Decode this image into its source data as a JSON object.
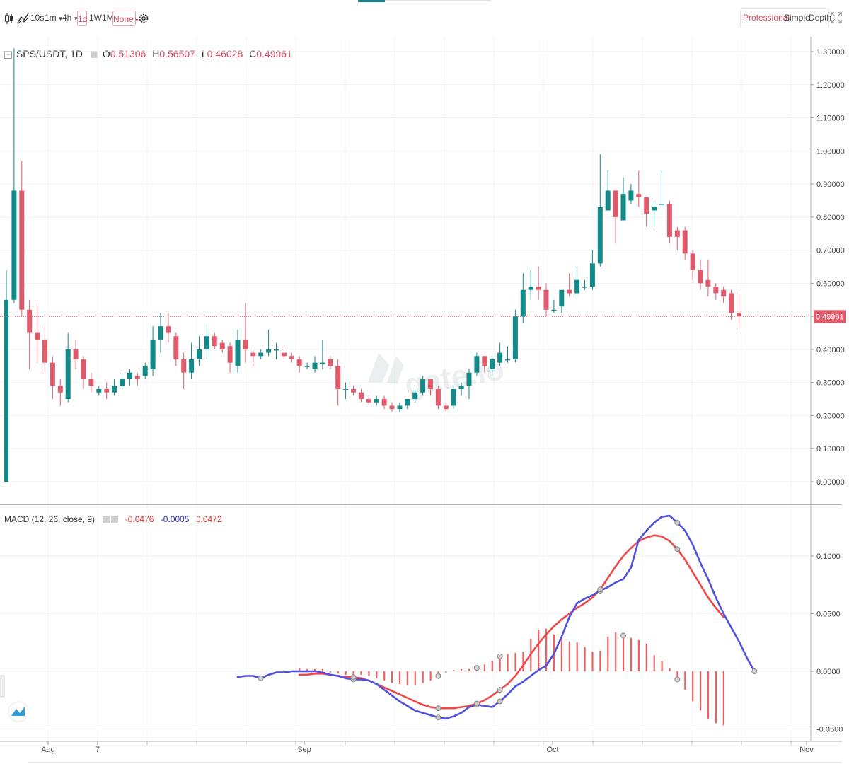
{
  "toolbar": {
    "intervals": [
      "10s",
      "1m",
      "4h",
      "1d",
      "1W",
      "1M"
    ],
    "active_interval": "1d",
    "chart_style": "None",
    "views": [
      "Professional",
      "Simple",
      "Depth"
    ],
    "active_view": "Professional"
  },
  "legend": {
    "symbol": "SPS/USDT, 1D",
    "o_label": "O",
    "open": "0.51306",
    "h_label": "H",
    "high": "0.56507",
    "l_label": "L",
    "low": "0.46028",
    "c_label": "C",
    "close": "0.49961"
  },
  "macd_legend": {
    "label": "MACD (12, 26, close, 9)",
    "hist": "-0.0476",
    "macd": "-0.0005",
    "signal": "0.0472"
  },
  "colors": {
    "up": "#138a8a",
    "down": "#e05c6d",
    "macd": "#5050e0",
    "signal": "#f04848",
    "hist": "#f06060"
  },
  "chart_data": [
    {
      "type": "candlestick",
      "title": "SPS/USDT, 1D",
      "ylim": [
        0,
        1.3
      ],
      "yticks": [
        "0.00000",
        "0.10000",
        "0.20000",
        "0.30000",
        "0.40000",
        "0.50000",
        "0.60000",
        "0.70000",
        "0.80000",
        "0.90000",
        "1.00000",
        "1.10000",
        "1.20000",
        "1.30000"
      ],
      "xticks": [
        "Aug",
        "7",
        "Sep",
        "Oct",
        "Nov"
      ],
      "last_price": "0.49961",
      "candles": [
        [
          0.0,
          0.55,
          0.64,
          0.0
        ],
        [
          0.55,
          0.88,
          1.31,
          0.54
        ],
        [
          0.88,
          0.52,
          0.97,
          0.5
        ],
        [
          0.52,
          0.45,
          0.55,
          0.34
        ],
        [
          0.45,
          0.43,
          0.54,
          0.36
        ],
        [
          0.43,
          0.36,
          0.47,
          0.33
        ],
        [
          0.36,
          0.29,
          0.38,
          0.25
        ],
        [
          0.29,
          0.27,
          0.31,
          0.23
        ],
        [
          0.25,
          0.4,
          0.45,
          0.24
        ],
        [
          0.4,
          0.37,
          0.43,
          0.34
        ],
        [
          0.37,
          0.31,
          0.38,
          0.28
        ],
        [
          0.31,
          0.29,
          0.33,
          0.27
        ],
        [
          0.27,
          0.28,
          0.29,
          0.26
        ],
        [
          0.28,
          0.27,
          0.3,
          0.25
        ],
        [
          0.27,
          0.29,
          0.31,
          0.26
        ],
        [
          0.29,
          0.31,
          0.33,
          0.28
        ],
        [
          0.31,
          0.33,
          0.34,
          0.29
        ],
        [
          0.32,
          0.31,
          0.33,
          0.29
        ],
        [
          0.32,
          0.35,
          0.36,
          0.31
        ],
        [
          0.34,
          0.43,
          0.47,
          0.32
        ],
        [
          0.43,
          0.47,
          0.51,
          0.39
        ],
        [
          0.47,
          0.45,
          0.51,
          0.42
        ],
        [
          0.44,
          0.37,
          0.45,
          0.35
        ],
        [
          0.37,
          0.33,
          0.39,
          0.28
        ],
        [
          0.33,
          0.37,
          0.42,
          0.31
        ],
        [
          0.37,
          0.4,
          0.44,
          0.35
        ],
        [
          0.4,
          0.44,
          0.48,
          0.37
        ],
        [
          0.44,
          0.41,
          0.45,
          0.4
        ],
        [
          0.42,
          0.4,
          0.43,
          0.39
        ],
        [
          0.41,
          0.36,
          0.42,
          0.33
        ],
        [
          0.35,
          0.43,
          0.46,
          0.33
        ],
        [
          0.43,
          0.4,
          0.54,
          0.36
        ],
        [
          0.39,
          0.38,
          0.4,
          0.35
        ],
        [
          0.38,
          0.39,
          0.4,
          0.37
        ],
        [
          0.39,
          0.4,
          0.46,
          0.38
        ],
        [
          0.4,
          0.4,
          0.42,
          0.37
        ],
        [
          0.39,
          0.38,
          0.4,
          0.37
        ],
        [
          0.38,
          0.37,
          0.39,
          0.36
        ],
        [
          0.37,
          0.35,
          0.38,
          0.33
        ],
        [
          0.35,
          0.35,
          0.36,
          0.34
        ],
        [
          0.34,
          0.36,
          0.38,
          0.33
        ],
        [
          0.36,
          0.36,
          0.43,
          0.34
        ],
        [
          0.37,
          0.35,
          0.38,
          0.34
        ],
        [
          0.35,
          0.28,
          0.37,
          0.23
        ],
        [
          0.28,
          0.28,
          0.3,
          0.25
        ],
        [
          0.28,
          0.27,
          0.29,
          0.26
        ],
        [
          0.27,
          0.25,
          0.28,
          0.24
        ],
        [
          0.25,
          0.24,
          0.26,
          0.23
        ],
        [
          0.24,
          0.25,
          0.26,
          0.23
        ],
        [
          0.25,
          0.23,
          0.26,
          0.22
        ],
        [
          0.23,
          0.22,
          0.24,
          0.21
        ],
        [
          0.22,
          0.23,
          0.24,
          0.21
        ],
        [
          0.23,
          0.25,
          0.25,
          0.22
        ],
        [
          0.25,
          0.27,
          0.28,
          0.24
        ],
        [
          0.27,
          0.31,
          0.32,
          0.26
        ],
        [
          0.31,
          0.28,
          0.31,
          0.26
        ],
        [
          0.28,
          0.23,
          0.29,
          0.22
        ],
        [
          0.23,
          0.22,
          0.24,
          0.21
        ],
        [
          0.23,
          0.28,
          0.29,
          0.22
        ],
        [
          0.28,
          0.29,
          0.3,
          0.26
        ],
        [
          0.29,
          0.33,
          0.34,
          0.25
        ],
        [
          0.33,
          0.38,
          0.39,
          0.32
        ],
        [
          0.38,
          0.35,
          0.38,
          0.33
        ],
        [
          0.34,
          0.37,
          0.38,
          0.32
        ],
        [
          0.36,
          0.39,
          0.42,
          0.35
        ],
        [
          0.37,
          0.37,
          0.41,
          0.36
        ],
        [
          0.37,
          0.5,
          0.52,
          0.36
        ],
        [
          0.5,
          0.58,
          0.63,
          0.48
        ],
        [
          0.58,
          0.59,
          0.64,
          0.55
        ],
        [
          0.59,
          0.58,
          0.65,
          0.55
        ],
        [
          0.58,
          0.52,
          0.6,
          0.5
        ],
        [
          0.52,
          0.52,
          0.55,
          0.51
        ],
        [
          0.53,
          0.58,
          0.58,
          0.51
        ],
        [
          0.58,
          0.57,
          0.63,
          0.56
        ],
        [
          0.57,
          0.61,
          0.65,
          0.56
        ],
        [
          0.59,
          0.59,
          0.61,
          0.58
        ],
        [
          0.59,
          0.66,
          0.7,
          0.58
        ],
        [
          0.66,
          0.83,
          0.99,
          0.65
        ],
        [
          0.82,
          0.88,
          0.94,
          0.83
        ],
        [
          0.88,
          0.8,
          0.88,
          0.72
        ],
        [
          0.79,
          0.87,
          0.92,
          0.8
        ],
        [
          0.85,
          0.88,
          0.9,
          0.84
        ],
        [
          0.87,
          0.86,
          0.94,
          0.83
        ],
        [
          0.86,
          0.81,
          0.86,
          0.77
        ],
        [
          0.82,
          0.83,
          0.85,
          0.77
        ],
        [
          0.84,
          0.84,
          0.94,
          0.83
        ],
        [
          0.84,
          0.74,
          0.85,
          0.72
        ],
        [
          0.76,
          0.74,
          0.77,
          0.7
        ],
        [
          0.76,
          0.69,
          0.77,
          0.67
        ],
        [
          0.69,
          0.64,
          0.7,
          0.61
        ],
        [
          0.64,
          0.6,
          0.67,
          0.58
        ],
        [
          0.61,
          0.59,
          0.67,
          0.56
        ],
        [
          0.59,
          0.57,
          0.6,
          0.55
        ],
        [
          0.58,
          0.56,
          0.59,
          0.54
        ],
        [
          0.57,
          0.51,
          0.58,
          0.49
        ],
        [
          0.51,
          0.5,
          0.57,
          0.46
        ]
      ]
    },
    {
      "type": "line",
      "title": "MACD (12, 26, close, 9)",
      "ylim": [
        -0.055,
        0.14
      ],
      "yticks": [
        "-0.0500",
        "0.0000",
        "0.0500",
        "0.1000"
      ],
      "xticks": [
        "Aug",
        "7",
        "Sep",
        "Oct",
        "Nov"
      ],
      "series": [
        {
          "name": "MACD",
          "color": "#5050e0",
          "start_index": 30,
          "values": [
            -0.005,
            -0.004,
            -0.004,
            -0.006,
            -0.003,
            -0.001,
            -0.001,
            0.0,
            0.0,
            0.0,
            0.0,
            -0.001,
            -0.003,
            -0.004,
            -0.006,
            -0.007,
            -0.007,
            -0.008,
            -0.011,
            -0.016,
            -0.021,
            -0.026,
            -0.03,
            -0.034,
            -0.036,
            -0.038,
            -0.04,
            -0.041,
            -0.039,
            -0.036,
            -0.031,
            -0.029,
            -0.03,
            -0.031,
            -0.026,
            -0.02,
            -0.013,
            -0.009,
            -0.004,
            0.001,
            0.005,
            0.015,
            0.03,
            0.047,
            0.059,
            0.063,
            0.066,
            0.07,
            0.073,
            0.077,
            0.08,
            0.09,
            0.114,
            0.122,
            0.129,
            0.134,
            0.135,
            0.129,
            0.122,
            0.11,
            0.094,
            0.08,
            0.064,
            0.05,
            0.038,
            0.026,
            0.012,
            0.0
          ]
        },
        {
          "name": "Signal",
          "color": "#f04848",
          "start_index": 38,
          "values": [
            -0.003,
            -0.003,
            -0.002,
            -0.002,
            -0.003,
            -0.004,
            -0.005,
            -0.005,
            -0.006,
            -0.008,
            -0.011,
            -0.014,
            -0.017,
            -0.02,
            -0.023,
            -0.026,
            -0.029,
            -0.031,
            -0.032,
            -0.032,
            -0.032,
            -0.031,
            -0.03,
            -0.028,
            -0.025,
            -0.021,
            -0.016,
            -0.011,
            -0.004,
            0.005,
            0.015,
            0.024,
            0.032,
            0.039,
            0.045,
            0.05,
            0.055,
            0.059,
            0.064,
            0.071,
            0.081,
            0.091,
            0.1,
            0.107,
            0.113,
            0.116,
            0.118,
            0.117,
            0.113,
            0.106,
            0.097,
            0.086,
            0.075,
            0.064,
            0.055,
            0.047
          ]
        },
        {
          "name": "Histogram",
          "color": "#f06060",
          "type": "bar",
          "start_index": 38,
          "values": [
            0.003,
            0.002,
            0.002,
            0.002,
            -0.001,
            -0.002,
            -0.003,
            -0.003,
            -0.003,
            -0.004,
            -0.006,
            -0.008,
            -0.01,
            -0.011,
            -0.012,
            -0.012,
            -0.01,
            -0.008,
            -0.004,
            -0.001,
            0.001,
            0.002,
            0.002,
            0.003,
            0.006,
            0.009,
            0.013,
            0.015,
            0.016,
            0.017,
            0.028,
            0.036,
            0.037,
            0.032,
            0.028,
            0.026,
            0.025,
            0.021,
            0.017,
            0.018,
            0.03,
            0.034,
            0.031,
            0.029,
            0.027,
            0.024,
            0.014,
            0.009,
            0.003,
            -0.007,
            -0.016,
            -0.026,
            -0.034,
            -0.041,
            -0.045,
            -0.047
          ]
        }
      ]
    }
  ]
}
